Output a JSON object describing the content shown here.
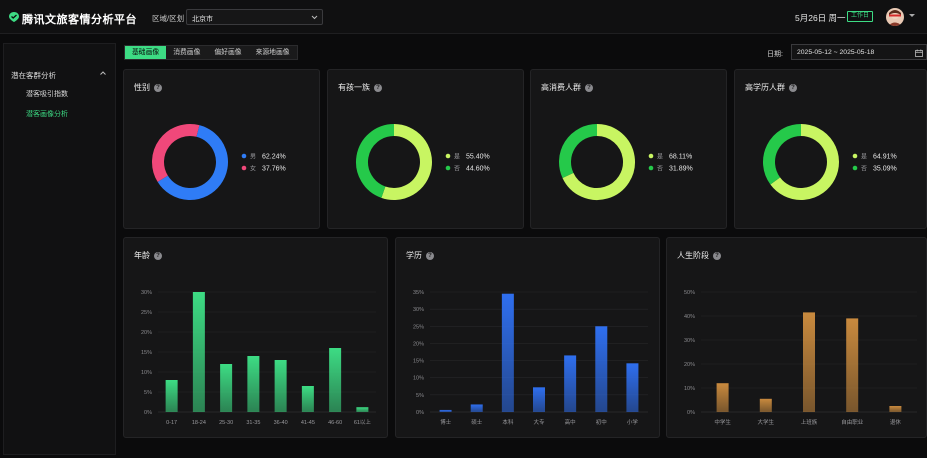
{
  "app": {
    "title": "腾讯文旅客情分析平台"
  },
  "header": {
    "region_label": "区域/区划",
    "region_value": "北京市",
    "date": "5月26日 周一",
    "day_badge": "工作日"
  },
  "sidebar": {
    "group_label": "潜在客群分析",
    "items": [
      {
        "label": "潜客吸引指数",
        "active": false
      },
      {
        "label": "潜客画像分析",
        "active": true
      }
    ]
  },
  "tabs": [
    {
      "label": "基础画像",
      "active": true
    },
    {
      "label": "消费画像",
      "active": false
    },
    {
      "label": "偏好画像",
      "active": false
    },
    {
      "label": "来源地画像",
      "active": false
    }
  ],
  "date_filter": {
    "label": "日期:",
    "value": "2025-05-12 ~ 2025-05-18"
  },
  "colors": {
    "accent": "#3ddc84",
    "male": "#2f7cf6",
    "female": "#f0487a",
    "yes": "#c8f562",
    "no": "#25c94a",
    "age_bar": "#3ddc84",
    "edu_bar": "#2f6fef",
    "life_bar": "#c98a3e"
  },
  "donuts": [
    {
      "title": "性别",
      "slices": [
        {
          "label": "男",
          "value": "62.24%"
        },
        {
          "label": "女",
          "value": "37.76%"
        }
      ]
    },
    {
      "title": "有孩一族",
      "slices": [
        {
          "label": "是",
          "value": "55.40%"
        },
        {
          "label": "否",
          "value": "44.60%"
        }
      ]
    },
    {
      "title": "高消费人群",
      "slices": [
        {
          "label": "是",
          "value": "68.11%"
        },
        {
          "label": "否",
          "value": "31.89%"
        }
      ]
    },
    {
      "title": "高学历人群",
      "slices": [
        {
          "label": "是",
          "value": "64.91%"
        },
        {
          "label": "否",
          "value": "35.09%"
        }
      ]
    }
  ],
  "chart_data": [
    {
      "type": "pie",
      "title": "性别",
      "categories": [
        "男",
        "女"
      ],
      "values": [
        62.24,
        37.76
      ]
    },
    {
      "type": "pie",
      "title": "有孩一族",
      "categories": [
        "是",
        "否"
      ],
      "values": [
        55.4,
        44.6
      ]
    },
    {
      "type": "pie",
      "title": "高消费人群",
      "categories": [
        "是",
        "否"
      ],
      "values": [
        68.11,
        31.89
      ]
    },
    {
      "type": "pie",
      "title": "高学历人群",
      "categories": [
        "是",
        "否"
      ],
      "values": [
        64.91,
        35.09
      ]
    },
    {
      "type": "bar",
      "title": "年龄",
      "categories": [
        "0-17",
        "18-24",
        "25-30",
        "31-35",
        "36-40",
        "41-45",
        "46-60",
        "61以上"
      ],
      "values": [
        8,
        30,
        12,
        14,
        13,
        6.5,
        16,
        1.2
      ],
      "yticks": [
        "0%",
        "5%",
        "10%",
        "15%",
        "20%",
        "25%",
        "30%"
      ],
      "ylim": [
        0,
        30
      ],
      "grid": true
    },
    {
      "type": "bar",
      "title": "学历",
      "categories": [
        "博士",
        "硕士",
        "本科",
        "大专",
        "高中",
        "初中",
        "小学"
      ],
      "values": [
        0.6,
        2.2,
        34.5,
        7.2,
        16.5,
        25,
        14.2
      ],
      "yticks": [
        "0%",
        "5%",
        "10%",
        "15%",
        "20%",
        "25%",
        "30%",
        "35%"
      ],
      "ylim": [
        0,
        35
      ],
      "grid": true
    },
    {
      "type": "bar",
      "title": "人生阶段",
      "categories": [
        "中学生",
        "大学生",
        "上班族",
        "自由职业",
        "退休"
      ],
      "values": [
        12,
        5.5,
        41.5,
        39,
        2.5
      ],
      "yticks": [
        "0%",
        "10%",
        "20%",
        "30%",
        "40%",
        "50%"
      ],
      "ylim": [
        0,
        50
      ],
      "grid": true
    }
  ]
}
